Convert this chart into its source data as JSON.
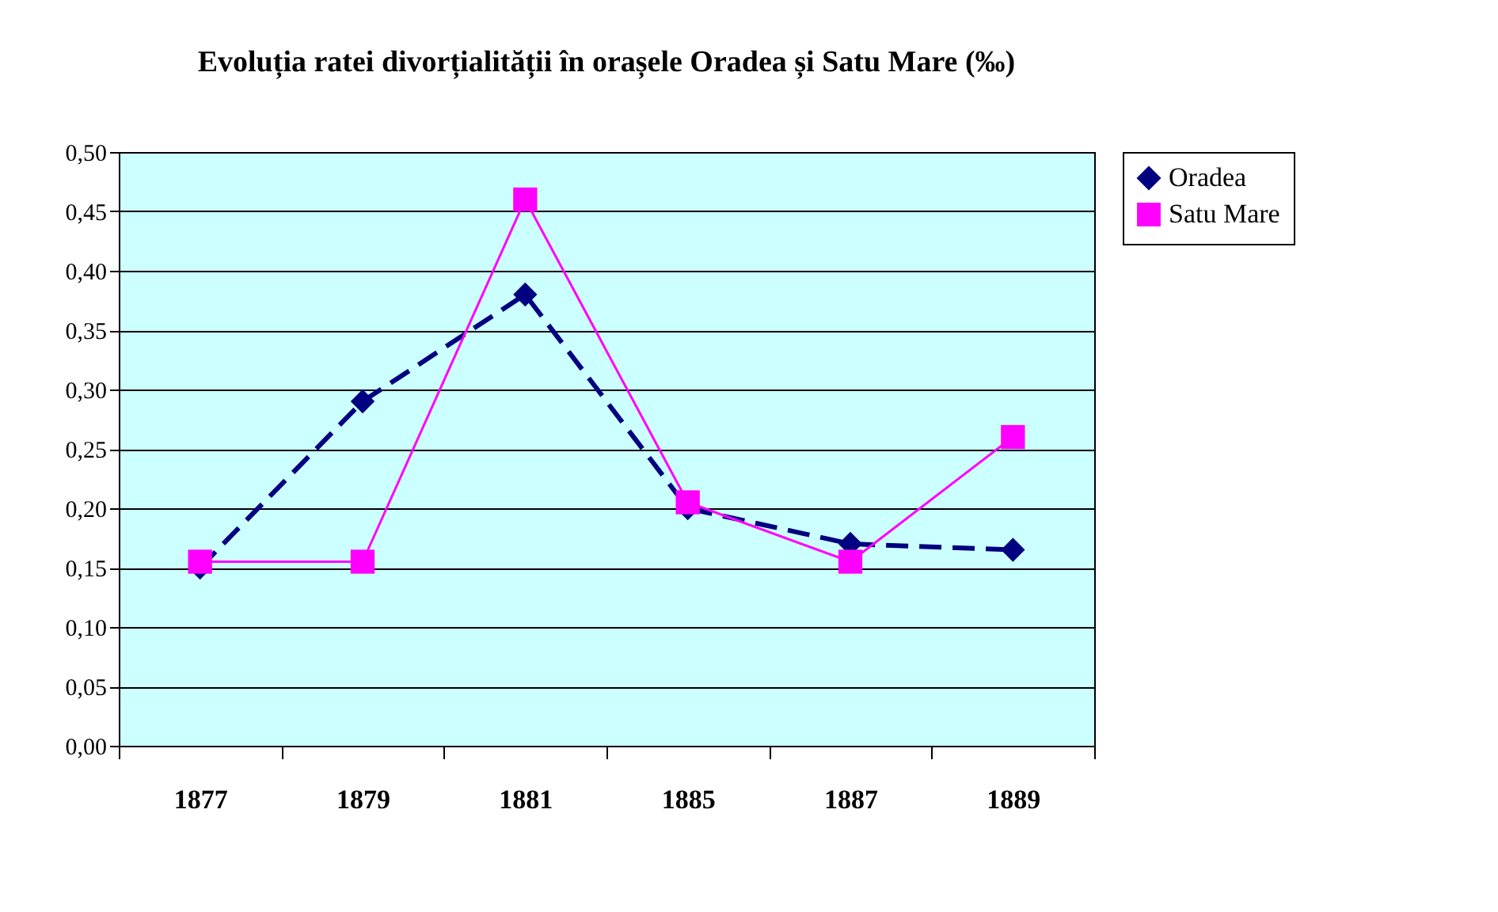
{
  "chart_data": {
    "type": "line",
    "title": "Evoluția ratei divorțialității în orașele Oradea și Satu Mare (‰)",
    "categories": [
      "1877",
      "1879",
      "1881",
      "1885",
      "1887",
      "1889"
    ],
    "series": [
      {
        "name": "Oradea",
        "color": "#000080",
        "values": [
          0.15,
          0.29,
          0.38,
          0.2,
          0.17,
          0.165
        ],
        "marker": "diamond",
        "line_style": "dashed"
      },
      {
        "name": "Satu Mare",
        "color": "#ff00ff",
        "values": [
          0.155,
          0.155,
          0.46,
          0.205,
          0.155,
          0.26
        ],
        "marker": "square",
        "line_style": "solid"
      }
    ],
    "ylim": [
      0,
      0.5
    ],
    "yticks": [
      {
        "value": 0,
        "label": "0,00"
      },
      {
        "value": 0.05,
        "label": "0,05"
      },
      {
        "value": 0.1,
        "label": "0,10"
      },
      {
        "value": 0.15,
        "label": "0,15"
      },
      {
        "value": 0.2,
        "label": "0,20"
      },
      {
        "value": 0.25,
        "label": "0,25"
      },
      {
        "value": 0.3,
        "label": "0,30"
      },
      {
        "value": 0.35,
        "label": "0,35"
      },
      {
        "value": 0.4,
        "label": "0,40"
      },
      {
        "value": 0.45,
        "label": "0,45"
      },
      {
        "value": 0.5,
        "label": "0,50"
      }
    ],
    "grid": "y",
    "legend": "right"
  }
}
